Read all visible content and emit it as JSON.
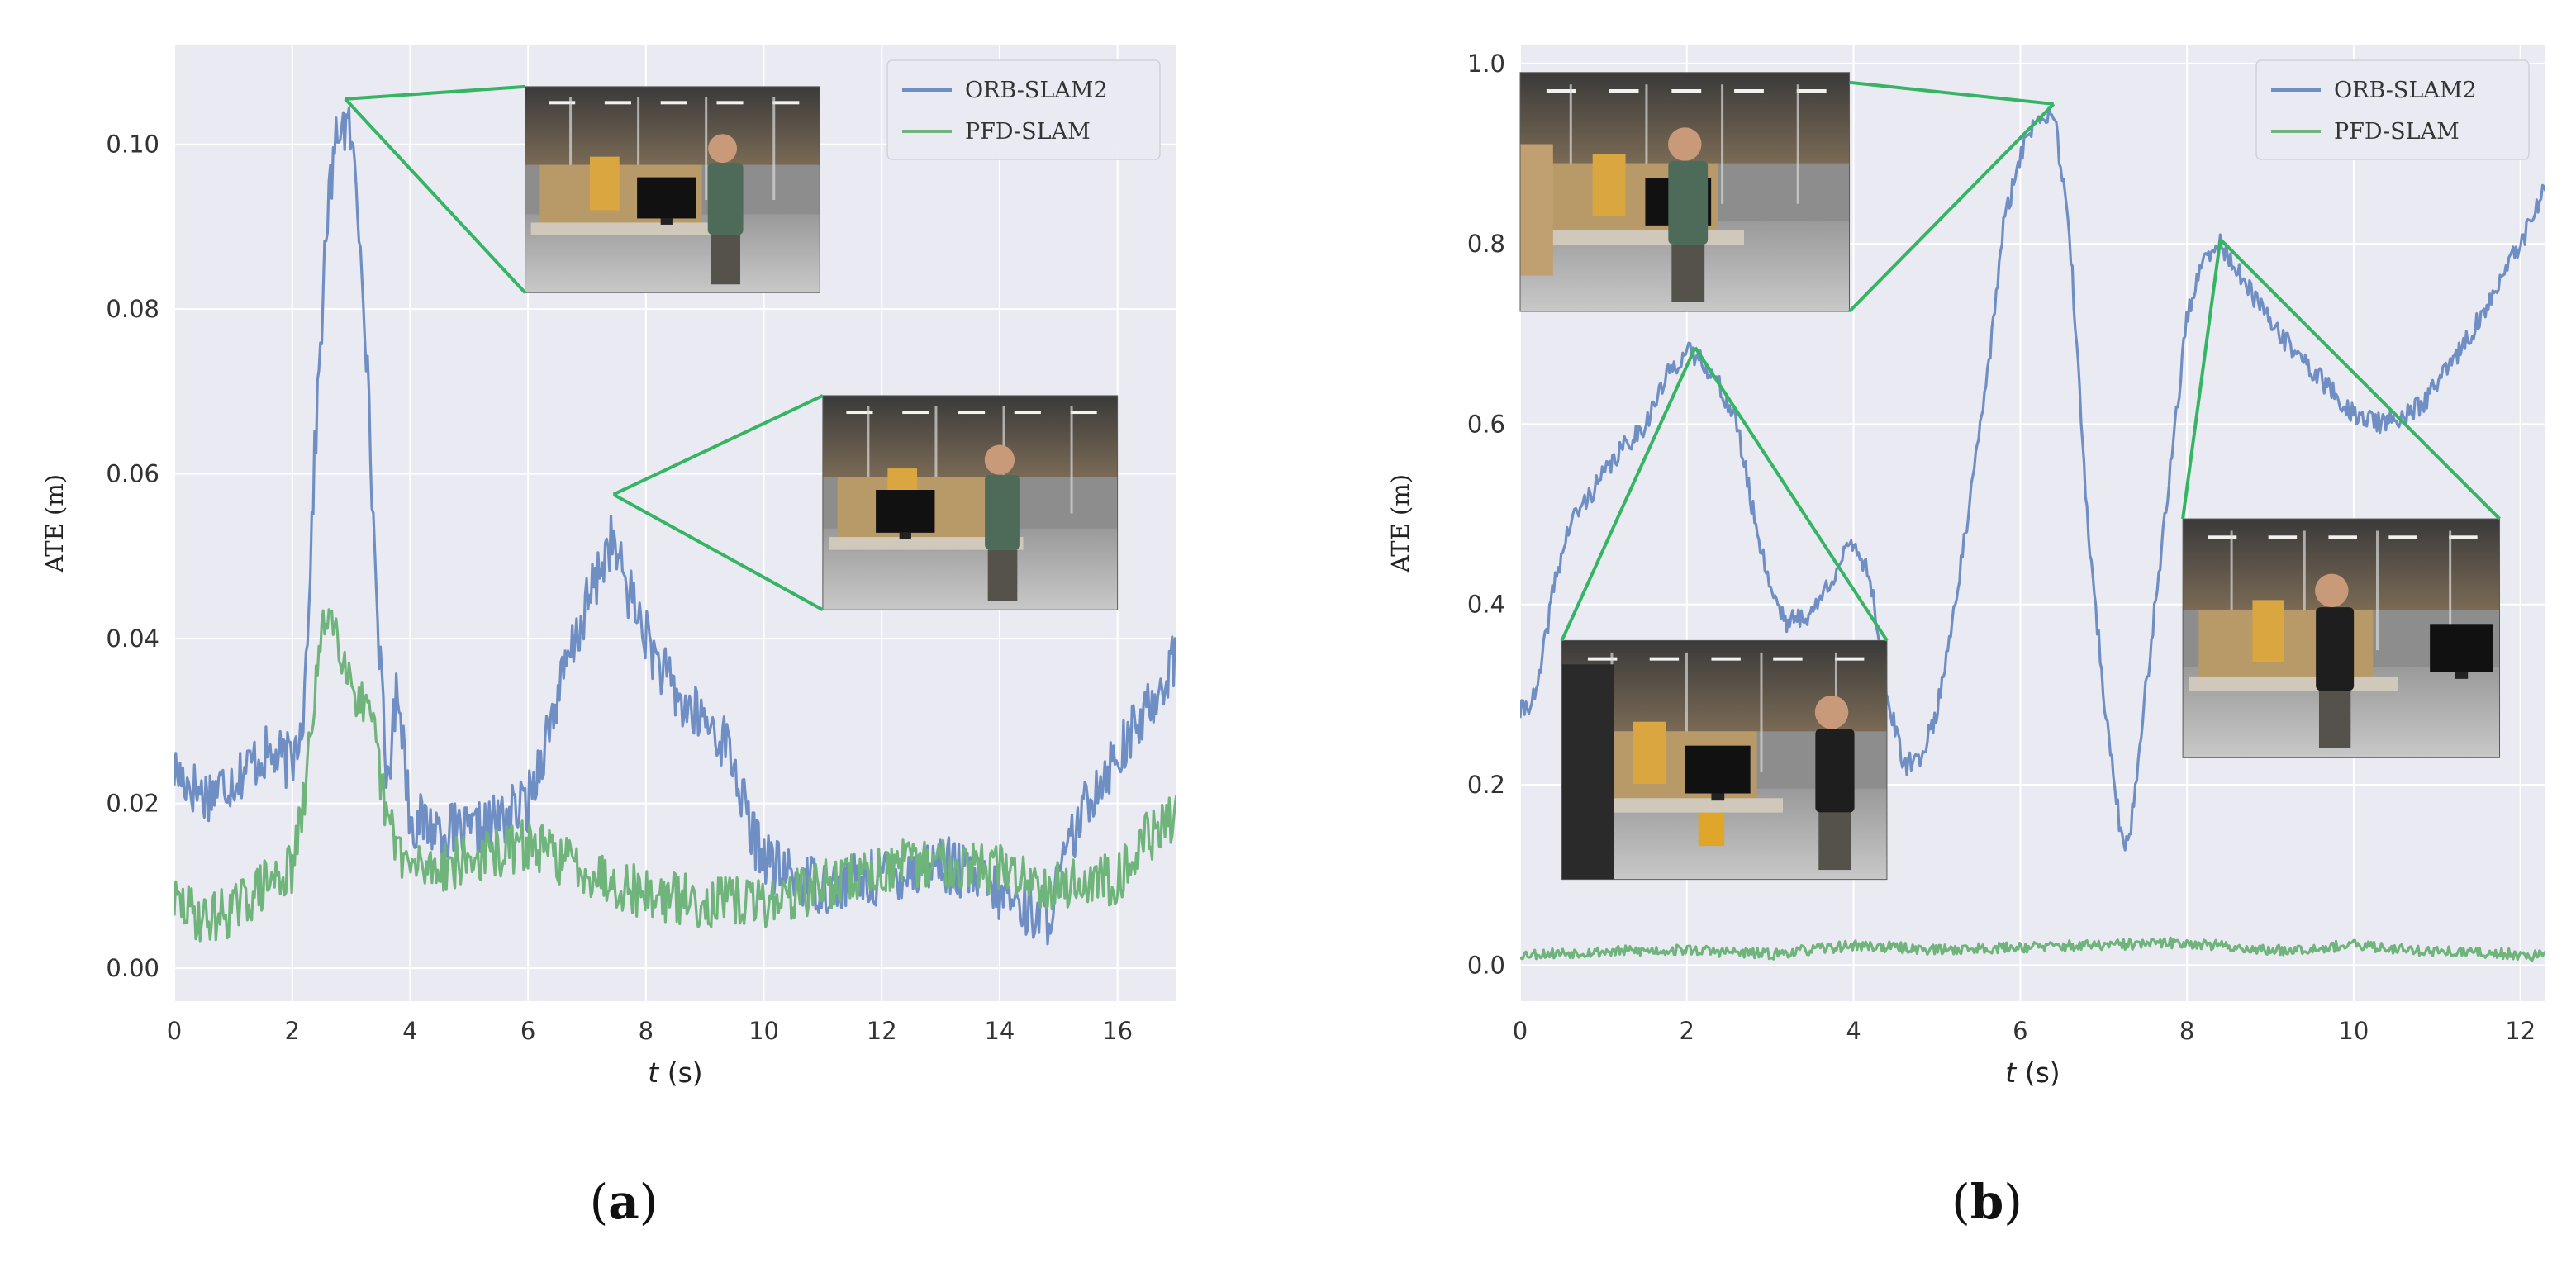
{
  "colors": {
    "orb": "#6f8fc4",
    "pfd": "#6fb47a",
    "zoom": "#35b463",
    "panel_bg": "#eaeaf2",
    "grid": "#ffffff"
  },
  "chart_data": [
    {
      "id": "a",
      "type": "line",
      "caption": "a",
      "xlabel_italic": "t",
      "xlabel_unit": " (s)",
      "ylabel": "ATE (m)",
      "xlim": [
        0,
        17
      ],
      "ylim": [
        -0.004,
        0.112
      ],
      "xticks": [
        0,
        2,
        4,
        6,
        8,
        10,
        12,
        14,
        16
      ],
      "yticks": [
        0.0,
        0.02,
        0.04,
        0.06,
        0.08,
        0.1
      ],
      "ytick_labels": [
        "0.00",
        "0.02",
        "0.04",
        "0.06",
        "0.08",
        "0.10"
      ],
      "grid": true,
      "legend": "top-right",
      "series": [
        {
          "name": "ORB-SLAM2",
          "color_key": "orb",
          "seed": 17,
          "noise": 0.0035,
          "points": [
            [
              0,
              0.024
            ],
            [
              0.5,
              0.021
            ],
            [
              1.0,
              0.023
            ],
            [
              1.5,
              0.026
            ],
            [
              2.0,
              0.025
            ],
            [
              2.2,
              0.032
            ],
            [
              2.4,
              0.065
            ],
            [
              2.6,
              0.092
            ],
            [
              2.8,
              0.103
            ],
            [
              3.0,
              0.101
            ],
            [
              3.2,
              0.085
            ],
            [
              3.4,
              0.05
            ],
            [
              3.6,
              0.022
            ],
            [
              3.8,
              0.035
            ],
            [
              4.0,
              0.018
            ],
            [
              4.5,
              0.017
            ],
            [
              5.0,
              0.016
            ],
            [
              5.5,
              0.018
            ],
            [
              6.0,
              0.02
            ],
            [
              6.5,
              0.033
            ],
            [
              7.0,
              0.044
            ],
            [
              7.4,
              0.052
            ],
            [
              7.8,
              0.044
            ],
            [
              8.2,
              0.037
            ],
            [
              8.6,
              0.032
            ],
            [
              9.0,
              0.03
            ],
            [
              9.4,
              0.027
            ],
            [
              9.8,
              0.016
            ],
            [
              10.2,
              0.012
            ],
            [
              11.0,
              0.01
            ],
            [
              12.0,
              0.011
            ],
            [
              13.0,
              0.013
            ],
            [
              14.0,
              0.009
            ],
            [
              14.8,
              0.006
            ],
            [
              15.2,
              0.015
            ],
            [
              15.6,
              0.022
            ],
            [
              16.0,
              0.026
            ],
            [
              16.4,
              0.03
            ],
            [
              17.0,
              0.038
            ]
          ]
        },
        {
          "name": "PFD-SLAM",
          "color_key": "pfd",
          "seed": 29,
          "noise": 0.0032,
          "points": [
            [
              0,
              0.008
            ],
            [
              0.5,
              0.006
            ],
            [
              1.0,
              0.007
            ],
            [
              1.5,
              0.01
            ],
            [
              2.0,
              0.012
            ],
            [
              2.2,
              0.02
            ],
            [
              2.4,
              0.035
            ],
            [
              2.6,
              0.044
            ],
            [
              2.8,
              0.04
            ],
            [
              3.0,
              0.035
            ],
            [
              3.4,
              0.028
            ],
            [
              3.6,
              0.018
            ],
            [
              4.0,
              0.012
            ],
            [
              5.0,
              0.013
            ],
            [
              6.0,
              0.015
            ],
            [
              7.0,
              0.012
            ],
            [
              8.0,
              0.009
            ],
            [
              9.0,
              0.008
            ],
            [
              10.0,
              0.008
            ],
            [
              11.0,
              0.01
            ],
            [
              12.0,
              0.012
            ],
            [
              13.0,
              0.013
            ],
            [
              14.0,
              0.012
            ],
            [
              15.0,
              0.01
            ],
            [
              16.0,
              0.011
            ],
            [
              16.5,
              0.016
            ],
            [
              17.0,
              0.018
            ]
          ]
        }
      ],
      "insets": [
        {
          "name": "inset-a1",
          "anchor": [
            2.9,
            0.1055
          ],
          "x0": 5.95,
          "x1": 10.95,
          "y_top": 0.107,
          "y_bottom": 0.082,
          "scene": "a1"
        },
        {
          "name": "inset-a2",
          "anchor": [
            7.45,
            0.0575
          ],
          "x0": 11.0,
          "x1": 16.0,
          "y_top": 0.0695,
          "y_bottom": 0.0435,
          "scene": "a2"
        }
      ]
    },
    {
      "id": "b",
      "type": "line",
      "caption": "b",
      "xlabel_italic": "t",
      "xlabel_unit": " (s)",
      "ylabel": "ATE (m)",
      "xlim": [
        0,
        12.3
      ],
      "ylim": [
        -0.04,
        1.02
      ],
      "xticks": [
        0,
        2,
        4,
        6,
        8,
        10,
        12
      ],
      "yticks": [
        0.0,
        0.2,
        0.4,
        0.6,
        0.8,
        1.0
      ],
      "ytick_labels": [
        "0.0",
        "0.2",
        "0.4",
        "0.6",
        "0.8",
        "1.0"
      ],
      "grid": true,
      "legend": "top-right",
      "series": [
        {
          "name": "ORB-SLAM2",
          "color_key": "orb",
          "seed": 41,
          "noise": 0.012,
          "points": [
            [
              0,
              0.28
            ],
            [
              0.2,
              0.3
            ],
            [
              0.4,
              0.42
            ],
            [
              0.6,
              0.49
            ],
            [
              0.9,
              0.53
            ],
            [
              1.2,
              0.57
            ],
            [
              1.5,
              0.6
            ],
            [
              1.8,
              0.66
            ],
            [
              2.0,
              0.68
            ],
            [
              2.2,
              0.67
            ],
            [
              2.4,
              0.64
            ],
            [
              2.6,
              0.6
            ],
            [
              2.8,
              0.5
            ],
            [
              3.0,
              0.42
            ],
            [
              3.2,
              0.38
            ],
            [
              3.5,
              0.39
            ],
            [
              3.8,
              0.44
            ],
            [
              4.0,
              0.47
            ],
            [
              4.2,
              0.43
            ],
            [
              4.4,
              0.3
            ],
            [
              4.6,
              0.22
            ],
            [
              4.8,
              0.23
            ],
            [
              5.0,
              0.28
            ],
            [
              5.3,
              0.45
            ],
            [
              5.6,
              0.65
            ],
            [
              5.8,
              0.82
            ],
            [
              6.0,
              0.9
            ],
            [
              6.2,
              0.94
            ],
            [
              6.4,
              0.95
            ],
            [
              6.6,
              0.8
            ],
            [
              6.8,
              0.5
            ],
            [
              7.0,
              0.3
            ],
            [
              7.2,
              0.15
            ],
            [
              7.3,
              0.13
            ],
            [
              7.5,
              0.3
            ],
            [
              7.8,
              0.55
            ],
            [
              8.0,
              0.72
            ],
            [
              8.2,
              0.78
            ],
            [
              8.4,
              0.8
            ],
            [
              8.8,
              0.74
            ],
            [
              9.2,
              0.69
            ],
            [
              9.6,
              0.65
            ],
            [
              10.0,
              0.61
            ],
            [
              10.4,
              0.6
            ],
            [
              10.8,
              0.62
            ],
            [
              11.2,
              0.67
            ],
            [
              11.6,
              0.73
            ],
            [
              12.0,
              0.8
            ],
            [
              12.3,
              0.86
            ]
          ]
        },
        {
          "name": "PFD-SLAM",
          "color_key": "pfd",
          "seed": 53,
          "noise": 0.006,
          "points": [
            [
              0,
              0.012
            ],
            [
              1.0,
              0.015
            ],
            [
              2.0,
              0.017
            ],
            [
              3.0,
              0.012
            ],
            [
              4.0,
              0.022
            ],
            [
              5.0,
              0.017
            ],
            [
              6.0,
              0.02
            ],
            [
              7.0,
              0.022
            ],
            [
              8.0,
              0.025
            ],
            [
              9.0,
              0.016
            ],
            [
              10.0,
              0.022
            ],
            [
              11.0,
              0.015
            ],
            [
              12.0,
              0.012
            ],
            [
              12.3,
              0.01
            ]
          ]
        }
      ],
      "insets": [
        {
          "name": "inset-b1",
          "anchor": [
            6.4,
            0.955
          ],
          "x0": 0.0,
          "x1": 3.95,
          "y_top": 0.99,
          "y_bottom": 0.725,
          "scene": "b1"
        },
        {
          "name": "inset-b2",
          "anchor": [
            2.1,
            0.685
          ],
          "x0": 0.5,
          "x1": 4.4,
          "y_top": 0.36,
          "y_bottom": 0.095,
          "scene": "b2"
        },
        {
          "name": "inset-b3",
          "anchor": [
            8.4,
            0.805
          ],
          "x0": 7.95,
          "x1": 11.75,
          "y_top": 0.495,
          "y_bottom": 0.23,
          "scene": "b3"
        }
      ]
    }
  ]
}
